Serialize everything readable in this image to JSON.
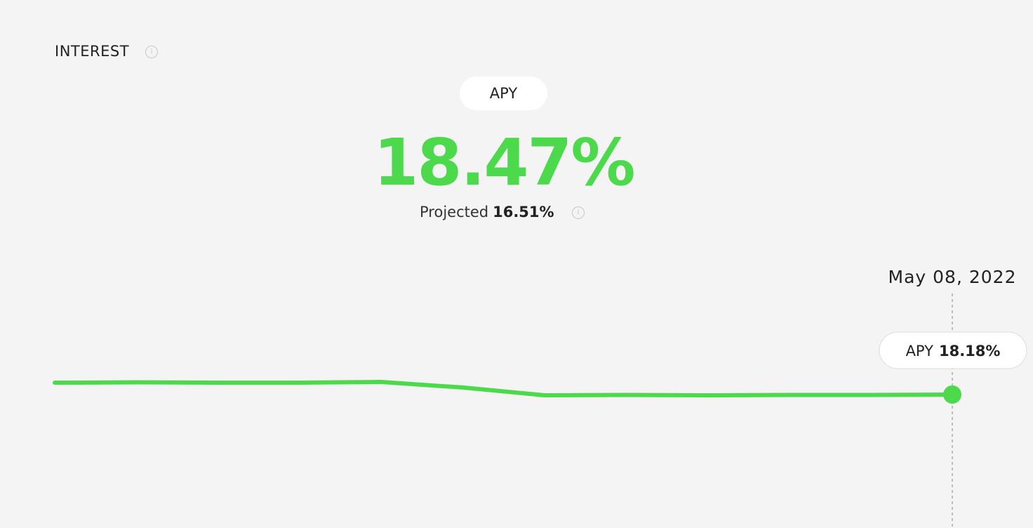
{
  "header": {
    "title": "INTEREST"
  },
  "apy": {
    "tab": "APY",
    "value": "18.47%",
    "projected_label": "Projected",
    "projected_value": "16.51%"
  },
  "chart_data": {
    "type": "line",
    "categories": [
      null,
      null,
      null,
      null,
      null,
      null,
      null,
      null,
      null,
      null,
      null,
      "May 08, 2022"
    ],
    "series": [
      {
        "name": "APY",
        "color": "#4cd94c",
        "values": [
          18.5,
          18.51,
          18.5,
          18.5,
          18.52,
          18.37,
          18.16,
          18.17,
          18.16,
          18.17,
          18.17,
          18.18
        ],
        "value_labels": [
          null,
          null,
          null,
          null,
          null,
          null,
          null,
          null,
          null,
          null,
          null,
          "18.18%"
        ]
      }
    ]
  }
}
